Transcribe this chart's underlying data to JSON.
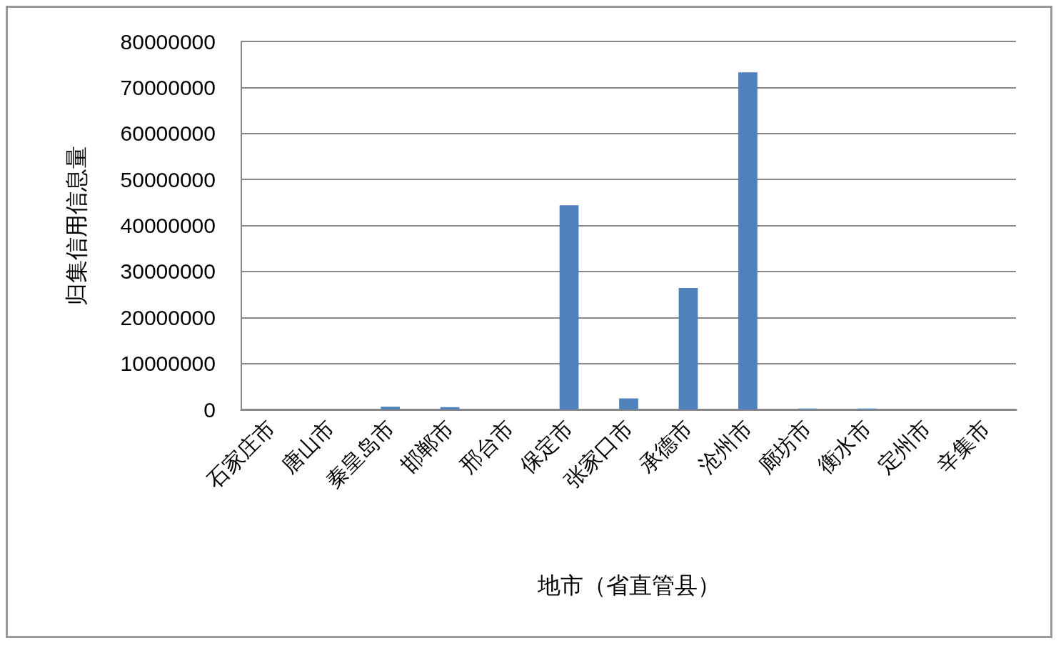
{
  "chart_data": {
    "type": "bar",
    "xlabel": "地市（省直管县）",
    "ylabel": "归集信用信息量",
    "categories": [
      "石家庄市",
      "唐山市",
      "秦皇岛市",
      "邯郸市",
      "邢台市",
      "保定市",
      "张家口市",
      "承德市",
      "沧州市",
      "廊坊市",
      "衡水市",
      "定州市",
      "辛集市"
    ],
    "values": [
      0,
      0,
      600000,
      500000,
      0,
      44400000,
      2400000,
      26400000,
      73300000,
      200000,
      200000,
      0,
      0
    ],
    "color": "#4f81bd",
    "ylim": [
      0,
      80000000
    ],
    "yticks": [
      0,
      10000000,
      20000000,
      30000000,
      40000000,
      50000000,
      60000000,
      70000000,
      80000000
    ],
    "grid": "y"
  }
}
